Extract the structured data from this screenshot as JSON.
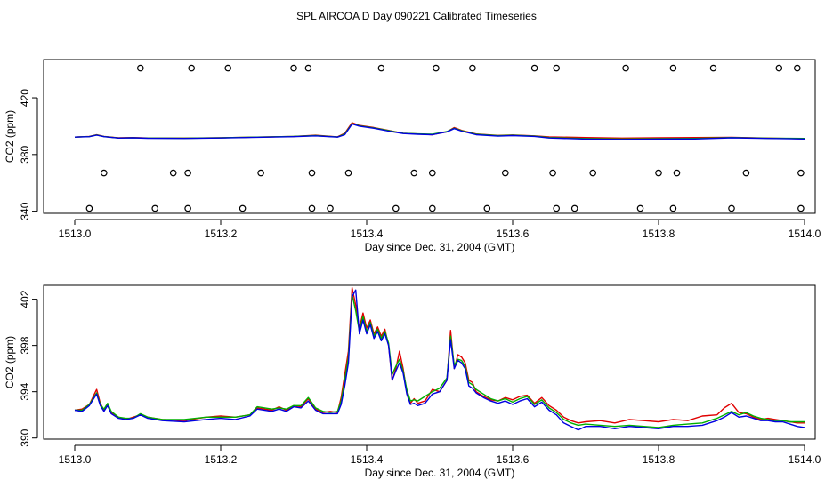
{
  "figure": {
    "title": "SPL AIRCOA D  Day 090221  Calibrated Timeseries"
  },
  "colors": {
    "series_red": "#e00000",
    "series_green": "#00b000",
    "series_blue": "#0000e0",
    "axis": "#000000"
  },
  "chart_data": [
    {
      "type": "line",
      "title": "",
      "xlabel": "Day since Dec. 31, 2004 (GMT)",
      "ylabel": "CO2 (ppm)",
      "xlim": [
        1513.0,
        1514.0
      ],
      "ylim": [
        338.5,
        447
      ],
      "xticks": [
        1513.0,
        1513.2,
        1513.4,
        1513.6,
        1513.8,
        1514.0
      ],
      "xtick_labels": [
        "1513.0",
        "1513.2",
        "1513.4",
        "1513.6",
        "1513.8",
        "1514.0"
      ],
      "yticks": [
        340,
        380,
        420
      ],
      "ytick_labels": [
        "340",
        "380",
        "420"
      ],
      "x": [
        1513.0,
        1513.02,
        1513.03,
        1513.04,
        1513.06,
        1513.08,
        1513.1,
        1513.15,
        1513.2,
        1513.25,
        1513.3,
        1513.33,
        1513.36,
        1513.37,
        1513.38,
        1513.39,
        1513.41,
        1513.43,
        1513.45,
        1513.47,
        1513.49,
        1513.51,
        1513.52,
        1513.53,
        1513.55,
        1513.58,
        1513.6,
        1513.63,
        1513.65,
        1513.7,
        1513.75,
        1513.8,
        1513.85,
        1513.9,
        1513.95,
        1514.0
      ],
      "series": [
        {
          "name": "red",
          "values": [
            392.3,
            392.8,
            394.0,
            392.8,
            391.8,
            392.0,
            391.7,
            391.6,
            391.9,
            392.3,
            392.8,
            393.6,
            392.5,
            395.0,
            402.5,
            400.5,
            399.0,
            397.0,
            395.0,
            394.5,
            394.0,
            396.0,
            399.0,
            397.0,
            394.5,
            393.5,
            393.8,
            393.2,
            392.5,
            392.0,
            391.6,
            391.8,
            392.0,
            392.2,
            391.6,
            391.1
          ]
        },
        {
          "name": "green",
          "values": [
            392.3,
            392.7,
            393.8,
            392.7,
            391.7,
            391.9,
            391.6,
            391.5,
            391.8,
            392.3,
            392.8,
            393.4,
            392.4,
            394.5,
            401.8,
            400.2,
            398.8,
            396.8,
            395.0,
            394.6,
            394.3,
            396.2,
            398.5,
            396.8,
            394.3,
            393.3,
            393.6,
            393.0,
            392.0,
            391.3,
            391.0,
            391.2,
            391.4,
            392.0,
            391.5,
            391.4
          ]
        },
        {
          "name": "blue",
          "values": [
            392.3,
            392.6,
            393.7,
            392.6,
            391.6,
            391.8,
            391.5,
            391.4,
            391.7,
            392.2,
            392.6,
            393.2,
            392.3,
            394.0,
            401.5,
            400.0,
            398.5,
            396.5,
            394.8,
            394.3,
            394.0,
            396.0,
            398.3,
            396.5,
            394.0,
            393.0,
            393.4,
            392.8,
            391.7,
            390.9,
            390.7,
            390.9,
            391.0,
            391.8,
            391.4,
            391.0
          ]
        }
      ],
      "calibration_points": {
        "name": "circles",
        "x": [
          1513.02,
          1513.04,
          1513.09,
          1513.11,
          1513.135,
          1513.155,
          1513.155,
          1513.16,
          1513.21,
          1513.23,
          1513.255,
          1513.3,
          1513.32,
          1513.325,
          1513.325,
          1513.35,
          1513.375,
          1513.42,
          1513.44,
          1513.465,
          1513.49,
          1513.49,
          1513.495,
          1513.545,
          1513.565,
          1513.59,
          1513.63,
          1513.655,
          1513.66,
          1513.66,
          1513.685,
          1513.71,
          1513.755,
          1513.775,
          1513.8,
          1513.82,
          1513.82,
          1513.825,
          1513.875,
          1513.9,
          1513.92,
          1513.965,
          1513.99,
          1513.995,
          1513.995
        ],
        "y": [
          342,
          367,
          441,
          342,
          367,
          342,
          367,
          441,
          441,
          342,
          367,
          441,
          441,
          342,
          367,
          342,
          367,
          441,
          342,
          367,
          342,
          367,
          441,
          441,
          342,
          367,
          441,
          367,
          342,
          441,
          342,
          367,
          441,
          342,
          367,
          342,
          441,
          367,
          441,
          342,
          367,
          441,
          441,
          342,
          367
        ]
      }
    },
    {
      "type": "line",
      "title": "",
      "xlabel": "Day since Dec. 31, 2004 (GMT)",
      "ylabel": "CO2 (ppm)",
      "xlim": [
        1513.0,
        1514.0
      ],
      "ylim": [
        389.9,
        403.2
      ],
      "xticks": [
        1513.0,
        1513.2,
        1513.4,
        1513.6,
        1513.8,
        1514.0
      ],
      "xtick_labels": [
        "1513.0",
        "1513.2",
        "1513.4",
        "1513.6",
        "1513.8",
        "1514.0"
      ],
      "yticks": [
        390,
        394,
        398,
        402
      ],
      "ytick_labels": [
        "390",
        "394",
        "398",
        "402"
      ],
      "x": [
        1513.0,
        1513.01,
        1513.02,
        1513.03,
        1513.035,
        1513.04,
        1513.045,
        1513.05,
        1513.06,
        1513.07,
        1513.08,
        1513.09,
        1513.1,
        1513.12,
        1513.15,
        1513.18,
        1513.2,
        1513.22,
        1513.24,
        1513.25,
        1513.27,
        1513.28,
        1513.29,
        1513.3,
        1513.31,
        1513.32,
        1513.33,
        1513.34,
        1513.35,
        1513.36,
        1513.365,
        1513.37,
        1513.375,
        1513.38,
        1513.385,
        1513.39,
        1513.395,
        1513.4,
        1513.405,
        1513.41,
        1513.415,
        1513.42,
        1513.425,
        1513.43,
        1513.435,
        1513.44,
        1513.445,
        1513.45,
        1513.455,
        1513.46,
        1513.465,
        1513.47,
        1513.48,
        1513.49,
        1513.5,
        1513.51,
        1513.515,
        1513.52,
        1513.525,
        1513.53,
        1513.535,
        1513.54,
        1513.545,
        1513.55,
        1513.56,
        1513.57,
        1513.58,
        1513.59,
        1513.6,
        1513.61,
        1513.62,
        1513.63,
        1513.64,
        1513.65,
        1513.66,
        1513.67,
        1513.68,
        1513.69,
        1513.7,
        1513.72,
        1513.74,
        1513.76,
        1513.78,
        1513.8,
        1513.82,
        1513.84,
        1513.86,
        1513.88,
        1513.89,
        1513.9,
        1513.91,
        1513.92,
        1513.93,
        1513.94,
        1513.95,
        1513.96,
        1513.97,
        1513.98,
        1513.99,
        1514.0
      ],
      "series": [
        {
          "name": "red",
          "values": [
            392.4,
            392.5,
            392.9,
            394.2,
            393.0,
            392.4,
            392.9,
            392.2,
            391.8,
            391.6,
            391.8,
            392.0,
            391.8,
            391.6,
            391.5,
            391.8,
            391.9,
            391.8,
            392.0,
            392.6,
            392.4,
            392.7,
            392.4,
            392.8,
            392.7,
            393.4,
            392.5,
            392.2,
            392.3,
            392.2,
            393.5,
            395.5,
            397.5,
            403.0,
            401.5,
            399.5,
            400.8,
            399.5,
            400.2,
            399.0,
            399.6,
            398.8,
            399.4,
            398.0,
            395.0,
            396.0,
            397.5,
            396.0,
            394.0,
            393.0,
            393.4,
            393.0,
            393.2,
            394.2,
            394.0,
            395.0,
            399.3,
            396.0,
            397.2,
            397.0,
            396.5,
            395.0,
            394.8,
            394.0,
            393.6,
            393.3,
            393.2,
            393.5,
            393.3,
            393.6,
            393.7,
            393.0,
            393.5,
            392.8,
            392.4,
            391.8,
            391.5,
            391.3,
            391.4,
            391.5,
            391.3,
            391.6,
            391.5,
            391.4,
            391.6,
            391.5,
            391.9,
            392.0,
            392.6,
            393.0,
            392.2,
            392.1,
            391.8,
            391.6,
            391.7,
            391.6,
            391.5,
            391.4,
            391.3,
            391.3
          ]
        },
        {
          "name": "green",
          "values": [
            392.4,
            392.4,
            392.9,
            393.9,
            392.9,
            392.5,
            393.0,
            392.3,
            391.8,
            391.7,
            391.7,
            392.1,
            391.8,
            391.6,
            391.6,
            391.8,
            391.8,
            391.8,
            392.0,
            392.7,
            392.5,
            392.6,
            392.5,
            392.8,
            392.8,
            393.5,
            392.6,
            392.3,
            392.2,
            392.3,
            393.2,
            395.0,
            397.0,
            402.4,
            401.0,
            399.2,
            400.5,
            399.2,
            400.0,
            398.8,
            399.4,
            398.6,
            399.2,
            398.2,
            395.5,
            396.2,
            396.8,
            395.8,
            394.2,
            393.2,
            393.3,
            393.2,
            393.6,
            394.0,
            394.3,
            395.2,
            398.8,
            396.3,
            396.8,
            396.7,
            396.2,
            394.8,
            394.6,
            394.2,
            393.8,
            393.4,
            393.2,
            393.4,
            393.1,
            393.4,
            393.6,
            392.9,
            393.3,
            392.6,
            392.2,
            391.6,
            391.3,
            391.1,
            391.2,
            391.1,
            391.0,
            391.1,
            391.0,
            390.9,
            391.1,
            391.2,
            391.3,
            391.7,
            392.0,
            392.3,
            392.0,
            392.2,
            391.9,
            391.7,
            391.6,
            391.5,
            391.5,
            391.4,
            391.4,
            391.4
          ]
        },
        {
          "name": "blue",
          "values": [
            392.4,
            392.3,
            392.8,
            393.8,
            392.8,
            392.3,
            392.8,
            392.1,
            391.7,
            391.6,
            391.7,
            392.0,
            391.7,
            391.5,
            391.4,
            391.6,
            391.7,
            391.6,
            391.9,
            392.5,
            392.3,
            392.5,
            392.3,
            392.7,
            392.6,
            393.2,
            392.4,
            392.1,
            392.1,
            392.1,
            392.9,
            394.5,
            396.5,
            402.2,
            402.8,
            399.0,
            400.2,
            399.0,
            399.8,
            398.6,
            399.2,
            398.4,
            399.0,
            398.0,
            395.0,
            395.8,
            396.5,
            395.6,
            393.8,
            392.9,
            393.0,
            392.8,
            393.0,
            393.8,
            394.0,
            395.0,
            398.5,
            396.0,
            396.7,
            396.5,
            396.0,
            394.5,
            394.3,
            393.9,
            393.5,
            393.2,
            393.0,
            393.2,
            392.9,
            393.2,
            393.4,
            392.7,
            393.1,
            392.4,
            392.0,
            391.3,
            391.0,
            390.7,
            391.0,
            391.0,
            390.8,
            391.0,
            390.9,
            390.8,
            391.0,
            391.0,
            391.1,
            391.5,
            391.8,
            392.2,
            391.8,
            391.9,
            391.7,
            391.5,
            391.5,
            391.4,
            391.4,
            391.2,
            391.0,
            390.9
          ]
        }
      ]
    }
  ]
}
